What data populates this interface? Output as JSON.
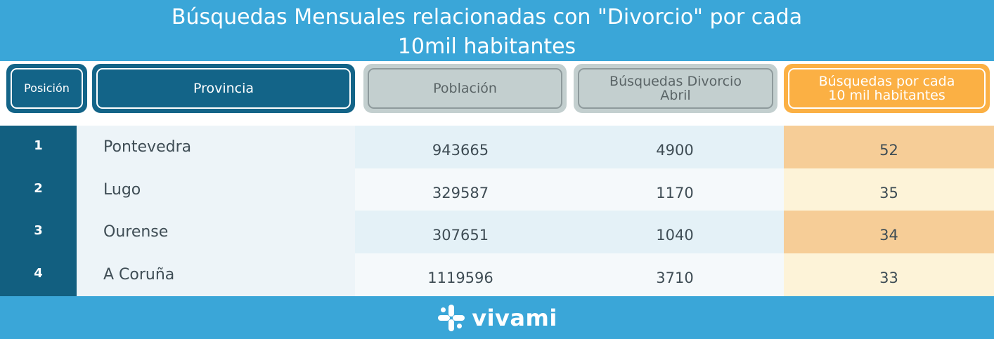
{
  "chart_data": {
    "type": "table",
    "title_line1": "Búsquedas Mensuales relacionadas con \"Divorcio\" por cada",
    "title_line2": "10mil habitantes",
    "columns": {
      "posicion": "Posición",
      "provincia": "Provincia",
      "poblacion": "Población",
      "busquedas_line1": "Búsquedas Divorcio",
      "busquedas_line2": "Abril",
      "rate_line1": "Búsquedas por cada",
      "rate_line2": "10 mil habitantes"
    },
    "rows": [
      {
        "posicion": "1",
        "provincia": "Pontevedra",
        "poblacion": "943665",
        "busquedas": "4900",
        "por_10mil": "52"
      },
      {
        "posicion": "2",
        "provincia": "Lugo",
        "poblacion": "329587",
        "busquedas": "1170",
        "por_10mil": "35"
      },
      {
        "posicion": "3",
        "provincia": "Ourense",
        "poblacion": "307651",
        "busquedas": "1040",
        "por_10mil": "34"
      },
      {
        "posicion": "4",
        "provincia": "A Coruña",
        "poblacion": "1119596",
        "busquedas": "3710",
        "por_10mil": "33"
      }
    ]
  },
  "footer": {
    "brand": "vivami",
    "logo_icon": "vivami-logo-icon"
  },
  "colors": {
    "title_bar": "#3aa6d8",
    "header_dark": "#136488",
    "header_grey": "#c3cfcf",
    "header_orange": "#fbb044",
    "position_column": "#125f80",
    "row_odd_mid": "#e4f1f7",
    "row_even_mid": "#f5f9fb",
    "row_odd_rate": "#f6cd97",
    "row_even_rate": "#fdf3d8"
  }
}
